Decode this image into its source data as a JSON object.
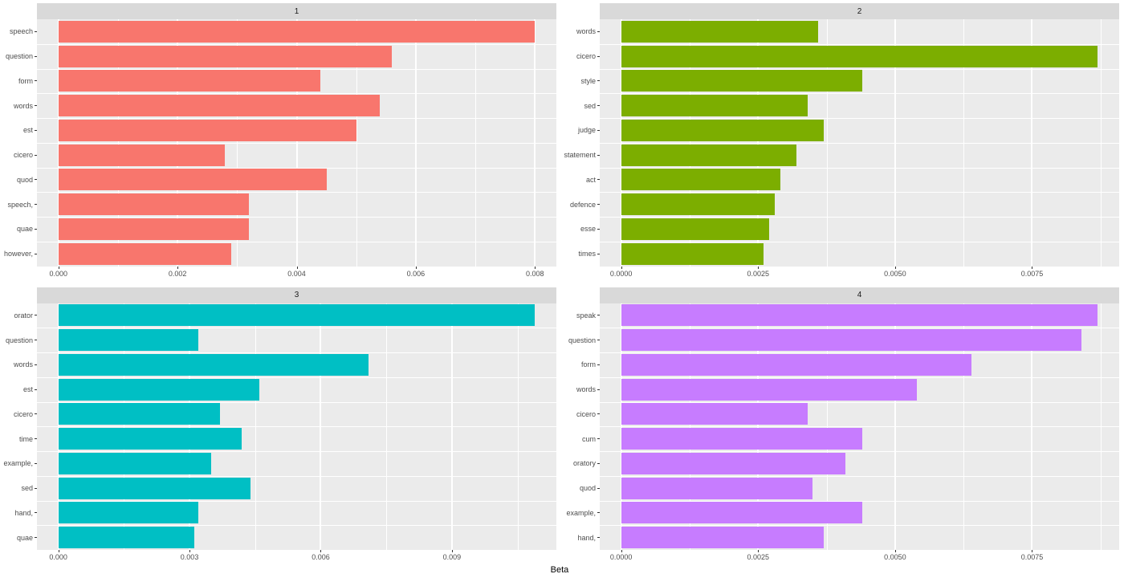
{
  "figure": {
    "xlabel": "Beta",
    "background": "#FFFFFF",
    "panel_background": "#EBEBEB",
    "strip_background": "#D9D9D9",
    "grid_color": "#FFFFFF",
    "axis_text_color": "#4D4D4D",
    "axis_title_color": "#000000",
    "layout": "2x2 facet grid, horizontal bars, legend off"
  },
  "chart_data": [
    {
      "type": "bar",
      "orientation": "horizontal",
      "facet_label": "1",
      "bar_color": "#F8766D",
      "categories": [
        "speech",
        "question",
        "form",
        "words",
        "est",
        "cicero",
        "quod",
        "speech,",
        "quae",
        "however,"
      ],
      "values": [
        0.008,
        0.0056,
        0.0044,
        0.0054,
        0.005,
        0.0028,
        0.0045,
        0.0032,
        0.0032,
        0.0029
      ],
      "x_ticks": [
        0,
        0.002,
        0.004,
        0.006,
        0.008
      ],
      "x_tick_labels": [
        "0.000",
        "0.002",
        "0.004",
        "0.006",
        "0.008"
      ],
      "xlim": [
        -0.00036,
        0.00836
      ]
    },
    {
      "type": "bar",
      "orientation": "horizontal",
      "facet_label": "2",
      "bar_color": "#7CAE00",
      "categories": [
        "words",
        "cicero",
        "style",
        "sed",
        "judge",
        "statement",
        "act",
        "defence",
        "esse",
        "times"
      ],
      "values": [
        0.0036,
        0.0087,
        0.0044,
        0.0034,
        0.0037,
        0.0032,
        0.0029,
        0.0028,
        0.0027,
        0.0026
      ],
      "x_ticks": [
        0,
        0.0025,
        0.005,
        0.0075
      ],
      "x_tick_labels": [
        "0.0000",
        "0.0025",
        "0.0050",
        "0.0075"
      ],
      "xlim": [
        -0.00039,
        0.00909
      ]
    },
    {
      "type": "bar",
      "orientation": "horizontal",
      "facet_label": "3",
      "bar_color": "#00BFC4",
      "categories": [
        "orator",
        "question",
        "words",
        "est",
        "cicero",
        "time",
        "example,",
        "sed",
        "hand,",
        "quae"
      ],
      "values": [
        0.0109,
        0.0032,
        0.0071,
        0.0046,
        0.0037,
        0.0042,
        0.0035,
        0.0044,
        0.0032,
        0.0031
      ],
      "x_ticks": [
        0,
        0.003,
        0.006,
        0.009
      ],
      "x_tick_labels": [
        "0.000",
        "0.003",
        "0.006",
        "0.009"
      ],
      "xlim": [
        -0.00049,
        0.01139
      ]
    },
    {
      "type": "bar",
      "orientation": "horizontal",
      "facet_label": "4",
      "bar_color": "#C77CFF",
      "categories": [
        "speak",
        "question",
        "form",
        "words",
        "cicero",
        "cum",
        "oratory",
        "quod",
        "example,",
        "hand,"
      ],
      "values": [
        0.0087,
        0.0084,
        0.0064,
        0.0054,
        0.0034,
        0.0044,
        0.0041,
        0.0035,
        0.0044,
        0.0037
      ],
      "x_ticks": [
        0,
        0.0025,
        0.005,
        0.0075
      ],
      "x_tick_labels": [
        "0.0000",
        "0.0025",
        "0.0050",
        "0.0075"
      ],
      "xlim": [
        -0.00039,
        0.00909
      ]
    }
  ]
}
